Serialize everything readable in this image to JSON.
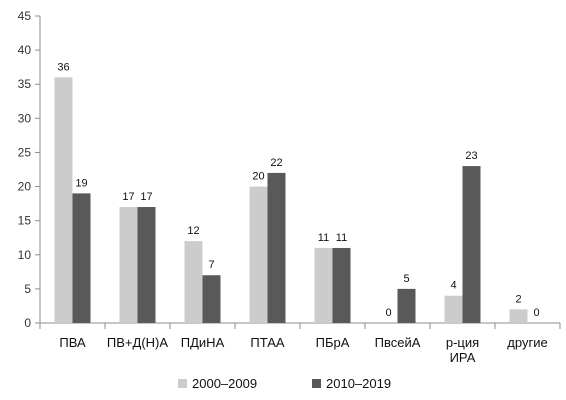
{
  "chart_data": {
    "type": "bar",
    "title": "",
    "xlabel": "",
    "ylabel": "",
    "ylim": [
      0,
      45
    ],
    "yticks": [
      0,
      5,
      10,
      15,
      20,
      25,
      30,
      35,
      40,
      45
    ],
    "grid": false,
    "legend_position": "bottom",
    "categories": [
      [
        "ПВА"
      ],
      [
        "ПВ+Д(Н)А"
      ],
      [
        "ПДиНА"
      ],
      [
        "ПТАА"
      ],
      [
        "ПБрА"
      ],
      [
        "ПвсейА"
      ],
      [
        "р-ция",
        "ИРА"
      ],
      [
        "другие"
      ]
    ],
    "series": [
      {
        "name": "2000–2009",
        "color": "#cccccc",
        "values": [
          36,
          17,
          12,
          20,
          11,
          0,
          4,
          2
        ]
      },
      {
        "name": "2010–2019",
        "color": "#595959",
        "values": [
          19,
          17,
          7,
          22,
          11,
          5,
          23,
          0
        ]
      }
    ]
  }
}
